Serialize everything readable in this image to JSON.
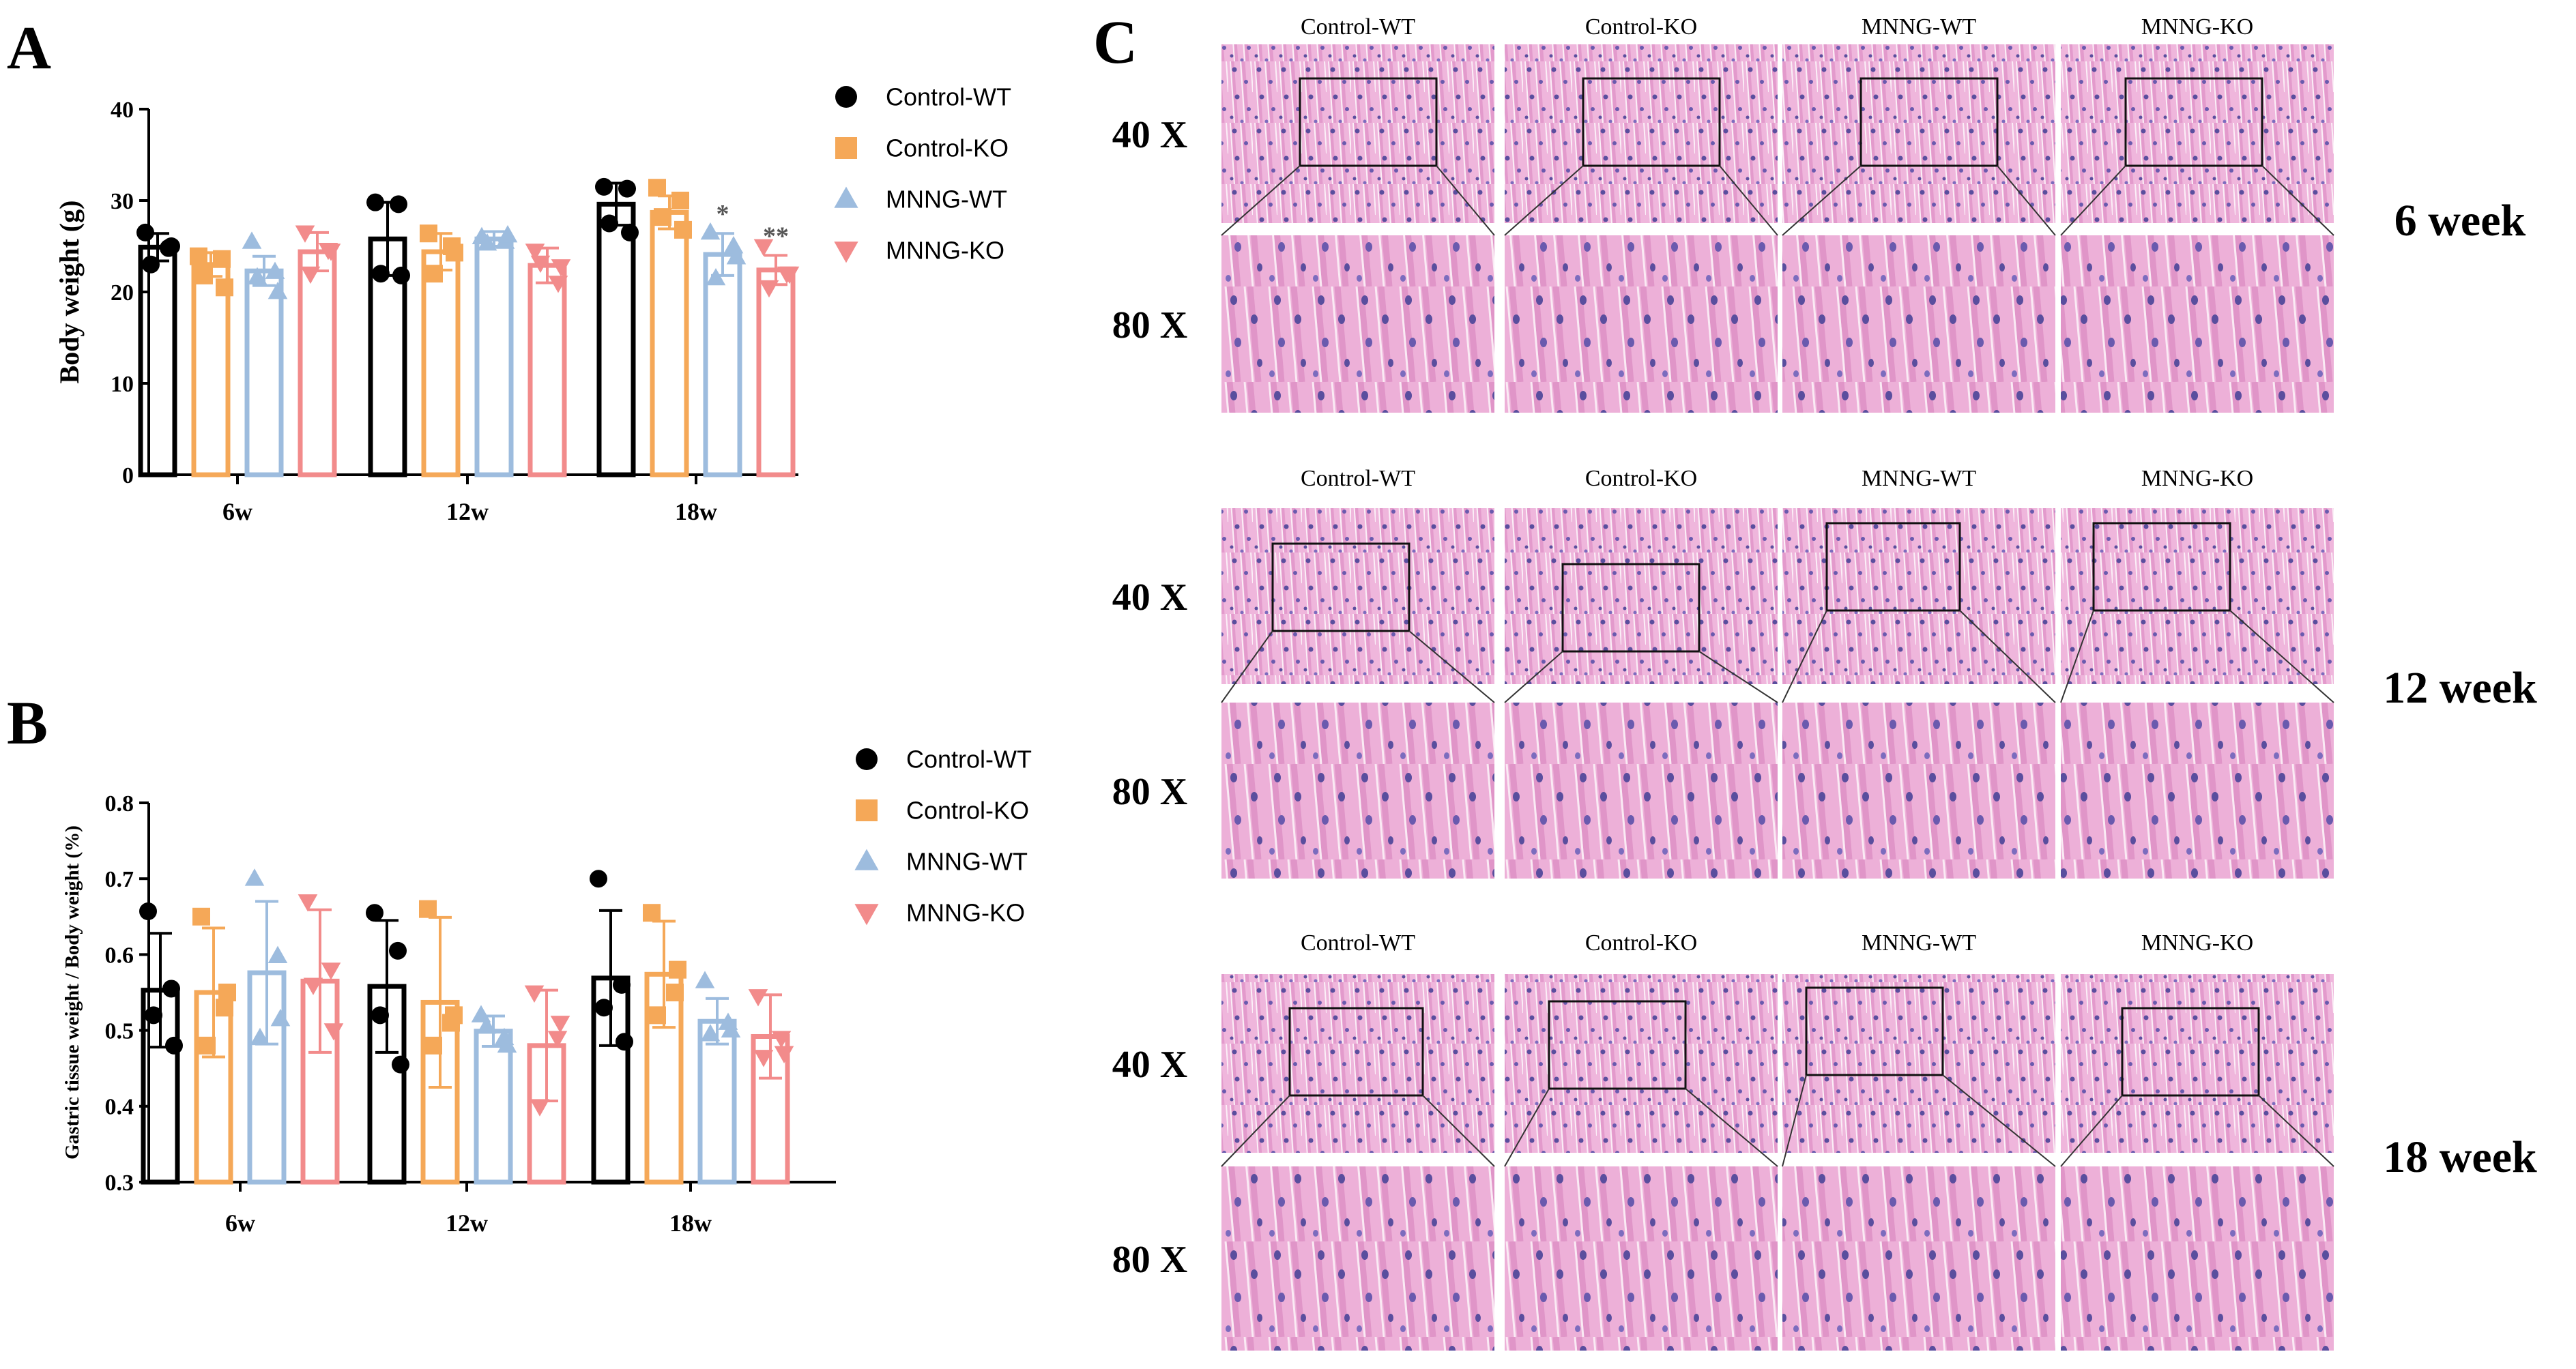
{
  "panels": {
    "a": {
      "letter": "A",
      "chart_data": {
        "type": "bar",
        "ylabel": "Body weight (g)",
        "xlabel": "",
        "ylim": [
          0,
          40
        ],
        "yticks": [
          "0",
          "10",
          "20",
          "30",
          "40"
        ],
        "categories": [
          "6w",
          "12w",
          "18w"
        ],
        "series": [
          {
            "name": "Control-WT",
            "color": "#000000",
            "marker": "circle",
            "values": [
              24.9,
              25.8,
              29.6
            ],
            "errors": [
              1.5,
              4.0,
              2.3
            ],
            "points": [
              [
                26.5,
                24.8,
                23.0,
                25.0
              ],
              [
                29.8,
                29.6,
                22.0,
                21.8
              ],
              [
                31.5,
                31.3,
                27.5,
                26.5
              ]
            ],
            "annotations": [
              "",
              "",
              ""
            ]
          },
          {
            "name": "Control-KO",
            "color": "#F5A858",
            "marker": "square",
            "values": [
              23.0,
              24.4,
              28.7
            ],
            "errors": [
              1.3,
              2.0,
              1.8
            ],
            "points": [
              [
                23.9,
                23.6,
                21.8,
                20.5
              ],
              [
                26.4,
                25.0,
                22.0,
                24.3
              ],
              [
                31.4,
                30.0,
                28.2,
                26.8
              ]
            ],
            "annotations": [
              "",
              "",
              ""
            ]
          },
          {
            "name": "MNNG-WT",
            "color": "#9DBCDE",
            "marker": "triangle-up",
            "values": [
              22.3,
              25.8,
              24.1
            ],
            "errors": [
              1.6,
              0.8,
              2.3
            ],
            "points": [
              [
                25.5,
                22.2,
                21.6,
                20.0
              ],
              [
                26.0,
                25.5,
                25.3,
                26.2
              ],
              [
                26.5,
                25.0,
                21.5,
                23.8
              ]
            ],
            "annotations": [
              "",
              "",
              "*"
            ]
          },
          {
            "name": "MNNG-KO",
            "color": "#F28B8B",
            "marker": "triangle-down",
            "values": [
              24.4,
              22.9,
              22.4
            ],
            "errors": [
              2.1,
              1.9,
              1.6
            ],
            "points": [
              [
                26.5,
                24.6,
                22.0,
                24.5
              ],
              [
                24.5,
                21.0,
                23.2,
                22.8
              ],
              [
                25.0,
                22.0,
                20.5,
                22.0
              ]
            ],
            "annotations": [
              "",
              "",
              "**"
            ]
          }
        ]
      }
    },
    "b": {
      "letter": "B",
      "chart_data": {
        "type": "bar",
        "ylabel": "Gastric tissue weight / Body weight (%)",
        "xlabel": "",
        "ylim": [
          0.3,
          0.8
        ],
        "yticks": [
          "0.3",
          "0.4",
          "0.5",
          "0.6",
          "0.7",
          "0.8"
        ],
        "categories": [
          "6w",
          "12w",
          "18w"
        ],
        "series": [
          {
            "name": "Control-WT",
            "color": "#000000",
            "marker": "circle",
            "values": [
              0.553,
              0.558,
              0.569
            ],
            "errors": [
              0.075,
              0.087,
              0.089
            ],
            "points": [
              [
                0.657,
                0.555,
                0.52,
                0.48
              ],
              [
                0.655,
                0.605,
                0.52,
                0.455
              ],
              [
                0.7,
                0.56,
                0.53,
                0.485
              ]
            ],
            "annotations": [
              "",
              "",
              ""
            ]
          },
          {
            "name": "Control-KO",
            "color": "#F5A858",
            "marker": "square",
            "values": [
              0.55,
              0.537,
              0.574
            ],
            "errors": [
              0.085,
              0.112,
              0.07
            ],
            "points": [
              [
                0.65,
                0.53,
                0.48,
                0.55
              ],
              [
                0.66,
                0.51,
                0.48,
                0.52
              ],
              [
                0.655,
                0.55,
                0.52,
                0.58
              ]
            ],
            "annotations": [
              "",
              "",
              ""
            ]
          },
          {
            "name": "MNNG-WT",
            "color": "#9DBCDE",
            "marker": "triangle-up",
            "values": [
              0.576,
              0.499,
              0.512
            ],
            "errors": [
              0.094,
              0.02,
              0.03
            ],
            "points": [
              [
                0.7,
                0.598,
                0.49,
                0.515
              ],
              [
                0.52,
                0.49,
                0.505,
                0.48
              ],
              [
                0.565,
                0.51,
                0.495,
                0.5
              ]
            ],
            "annotations": [
              "",
              "",
              ""
            ]
          },
          {
            "name": "MNNG-KO",
            "color": "#F28B8B",
            "marker": "triangle-down",
            "values": [
              0.565,
              0.48,
              0.492
            ],
            "errors": [
              0.094,
              0.073,
              0.055
            ],
            "points": [
              [
                0.67,
                0.58,
                0.56,
                0.5
              ],
              [
                0.55,
                0.49,
                0.4,
                0.51
              ],
              [
                0.545,
                0.49,
                0.465,
                0.47
              ]
            ],
            "annotations": [
              "",
              "",
              ""
            ]
          }
        ]
      }
    },
    "c": {
      "letter": "C",
      "groups": [
        "Control-WT",
        "Control-KO",
        "MNNG-WT",
        "MNNG-KO"
      ],
      "rows": [
        {
          "week": "6 week",
          "mag_top": "40 X",
          "mag_bottom": "80 X"
        },
        {
          "week": "12 week",
          "mag_top": "40 X",
          "mag_bottom": "80 X"
        },
        {
          "week": "18 week",
          "mag_top": "40 X",
          "mag_bottom": "80 X"
        }
      ],
      "stain_colors": {
        "background": "#EFB6DC",
        "dark": "#E39ACC",
        "nuclei": "#5A4E9E",
        "lumen": "#FBEFF7"
      }
    }
  }
}
